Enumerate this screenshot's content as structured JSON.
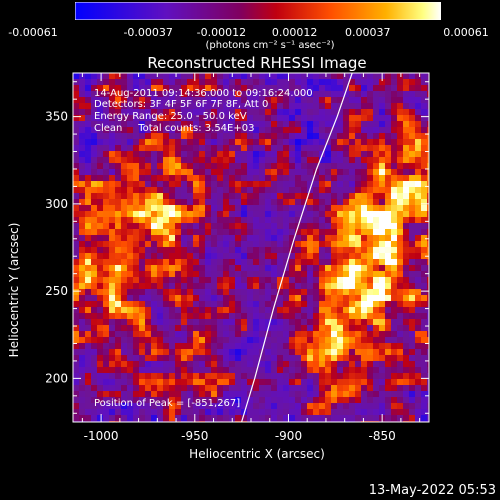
{
  "colorbar": {
    "ticks": [
      "-0.00061",
      "-0.00037",
      "-0.00012",
      "0.00012",
      "0.00037",
      "0.00061"
    ],
    "units": "(photons cm⁻² s⁻¹ asec⁻²)",
    "colors": [
      "#0000ff",
      "#5000d0",
      "#800080",
      "#b00020",
      "#ff4000",
      "#ffa000",
      "#ffff60",
      "#ffffff"
    ]
  },
  "chart_data": {
    "type": "heatmap",
    "title": "Reconstructed RHESSI Image",
    "xlabel": "Heliocentric X (arcsec)",
    "ylabel": "Heliocentric Y (arcsec)",
    "xlim": [
      -1015,
      -825
    ],
    "ylim": [
      175,
      375
    ],
    "xticks": [
      "-1000",
      "-950",
      "-900",
      "-850"
    ],
    "yticks": [
      "200",
      "250",
      "300",
      "350"
    ],
    "value_range": [
      -0.00061,
      0.00061
    ],
    "limb_line": [
      [
        -925,
        175
      ],
      [
        -918,
        200
      ],
      [
        -908,
        240
      ],
      [
        -897,
        280
      ],
      [
        -885,
        320
      ],
      [
        -874,
        350
      ],
      [
        -866,
        375
      ]
    ],
    "peak": [
      -851,
      267
    ],
    "bright_regions": [
      {
        "x": -975,
        "y": 300,
        "value": 0.00045
      },
      {
        "x": -1000,
        "y": 255,
        "value": 0.00035
      },
      {
        "x": -855,
        "y": 265,
        "value": 0.00061
      },
      {
        "x": -870,
        "y": 210,
        "value": 0.0003
      },
      {
        "x": -950,
        "y": 210,
        "value": 0.0002
      },
      {
        "x": -950,
        "y": 330,
        "value": 0.0001
      },
      {
        "x": -835,
        "y": 320,
        "value": 0.00035
      }
    ]
  },
  "info": {
    "time": "14-Aug-2011 09:14:36.000 to 09:16:24.000",
    "detectors": "Detectors: 3F 4F 5F 6F 7F 8F, Att 0",
    "energy": "Energy Range: 25.0 - 50.0 keV",
    "method": "Clean     Total counts: 3.54E+03",
    "peak": "Position of Peak = [-851,267]"
  },
  "footer": "13-May-2022 05:53"
}
